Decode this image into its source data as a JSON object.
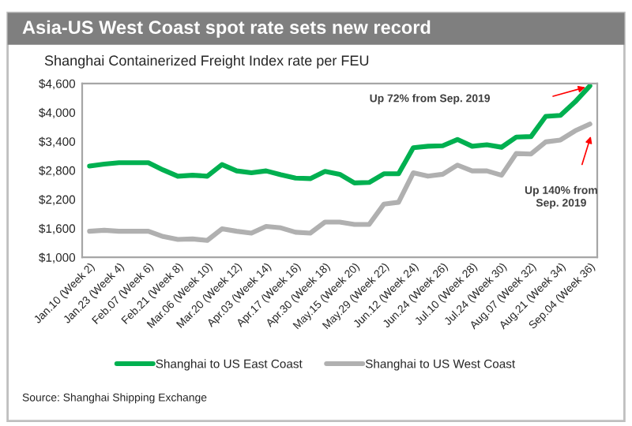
{
  "chart_data": {
    "type": "line",
    "title": "Asia-US West Coast spot rate sets new record",
    "subtitle": "Shanghai Containerized Freight Index rate per FEU",
    "categories": [
      "Jan.10 (Week 2)",
      null,
      "Jan.23 (Week 4)",
      null,
      "Feb.07 (Week 6)",
      null,
      "Feb.21 (Week 8)",
      null,
      "Mar.06 (Week 10)",
      null,
      "Mar.20 (Week 12)",
      null,
      "Apr.03 (Week 14)",
      null,
      "Apr.17 (Week 16)",
      null,
      "Apr.30 (Week 18)",
      null,
      "May.15 (Week 20)",
      null,
      "May.29 (Week 22)",
      null,
      "Jun.12 (Week 24)",
      null,
      "Jun.24 (Week 26)",
      null,
      "Jul.10 (Week 28)",
      null,
      "Jul.24 (Week 30)",
      null,
      "Aug.07 (Week 32)",
      null,
      "Aug.21 (Week 34)",
      null,
      "Sep.04 (Week 36)"
    ],
    "series": [
      {
        "name": "Shanghai to US East Coast",
        "color": "#00b050",
        "values": [
          2890,
          2930,
          2960,
          2960,
          2960,
          2810,
          2680,
          2700,
          2680,
          2920,
          2790,
          2750,
          2790,
          2710,
          2640,
          2630,
          2780,
          2720,
          2540,
          2550,
          2730,
          2730,
          3270,
          3300,
          3310,
          3440,
          3300,
          3330,
          3280,
          3490,
          3500,
          3920,
          3940,
          4220,
          4550
        ]
      },
      {
        "name": "Shanghai to US West Coast",
        "color": "#b0b0b0",
        "values": [
          1540,
          1560,
          1540,
          1540,
          1540,
          1430,
          1370,
          1380,
          1350,
          1590,
          1540,
          1500,
          1640,
          1610,
          1520,
          1500,
          1730,
          1730,
          1680,
          1680,
          2100,
          2140,
          2750,
          2680,
          2720,
          2910,
          2790,
          2790,
          2700,
          3150,
          3140,
          3390,
          3430,
          3620,
          3760
        ]
      }
    ],
    "ylim": [
      1000,
      4600
    ],
    "yticks": [
      {
        "value": 1000,
        "label": "$1,000"
      },
      {
        "value": 1600,
        "label": "$1,600"
      },
      {
        "value": 2200,
        "label": "$2,200"
      },
      {
        "value": 2800,
        "label": "$2,800"
      },
      {
        "value": 3400,
        "label": "$3,400"
      },
      {
        "value": 4000,
        "label": "$4,000"
      },
      {
        "value": 4600,
        "label": "$4,600"
      }
    ],
    "annotations": [
      "Up 72% from Sep. 2019",
      "Up 140% from\nSep. 2019",
      "Source: Shanghai Shipping Exchange"
    ],
    "grid": false,
    "legend": "bottom",
    "marker": "none",
    "line_style": "solid"
  }
}
